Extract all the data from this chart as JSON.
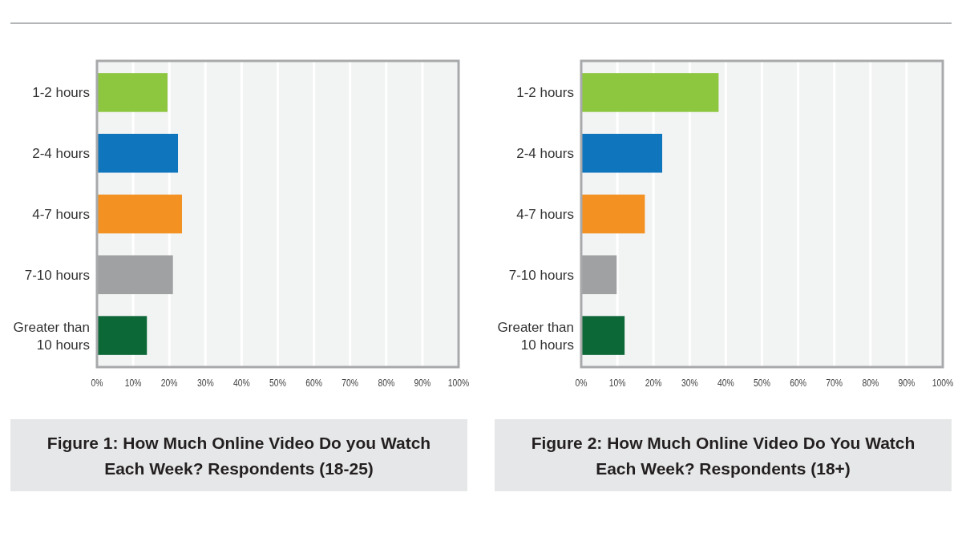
{
  "chart_data": [
    {
      "type": "bar",
      "orientation": "horizontal",
      "title": "Figure 1: How Much Online Video Do you Watch Each Week? Respondents (18-25)",
      "categories": [
        "1-2 hours",
        "2-4 hours",
        "4-7 hours",
        "7-10 hours",
        "Greater than 10 hours"
      ],
      "values": [
        19.5,
        22.4,
        23.5,
        21,
        13.8
      ],
      "colors": [
        "#8dc63f",
        "#0f75bc",
        "#f39122",
        "#a0a1a3",
        "#0d6838"
      ],
      "xlim": [
        0,
        100
      ],
      "xticks": [
        {
          "value": 0,
          "label": "0%"
        },
        {
          "value": 10,
          "label": "10%"
        },
        {
          "value": 20,
          "label": "20%"
        },
        {
          "value": 30,
          "label": "30%"
        },
        {
          "value": 40,
          "label": "40%"
        },
        {
          "value": 50,
          "label": "50%"
        },
        {
          "value": 60,
          "label": "60%"
        },
        {
          "value": 70,
          "label": "70%"
        },
        {
          "value": 80,
          "label": "80%"
        },
        {
          "value": 90,
          "label": "90%"
        },
        {
          "value": 100,
          "label": "100%"
        }
      ],
      "grid": "x"
    },
    {
      "type": "bar",
      "orientation": "horizontal",
      "title": "Figure 2: How Much Online Video Do You Watch Each Week? Respondents (18+)",
      "categories": [
        "1-2 hours",
        "2-4 hours",
        "4-7 hours",
        "7-10 hours",
        "Greater than 10 hours"
      ],
      "values": [
        38,
        22.4,
        17.6,
        9.8,
        12
      ],
      "colors": [
        "#8dc63f",
        "#0f75bc",
        "#f39122",
        "#a0a1a3",
        "#0d6838"
      ],
      "xlim": [
        0,
        100
      ],
      "xticks": [
        {
          "value": 0,
          "label": "0%"
        },
        {
          "value": 10,
          "label": "10%"
        },
        {
          "value": 20,
          "label": "20%"
        },
        {
          "value": 30,
          "label": "30%"
        },
        {
          "value": 40,
          "label": "40%"
        },
        {
          "value": 50,
          "label": "50%"
        },
        {
          "value": 60,
          "label": "60%"
        },
        {
          "value": 70,
          "label": "70%"
        },
        {
          "value": 80,
          "label": "80%"
        },
        {
          "value": 90,
          "label": "90%"
        },
        {
          "value": 100,
          "label": "100%"
        }
      ],
      "grid": "x"
    }
  ]
}
